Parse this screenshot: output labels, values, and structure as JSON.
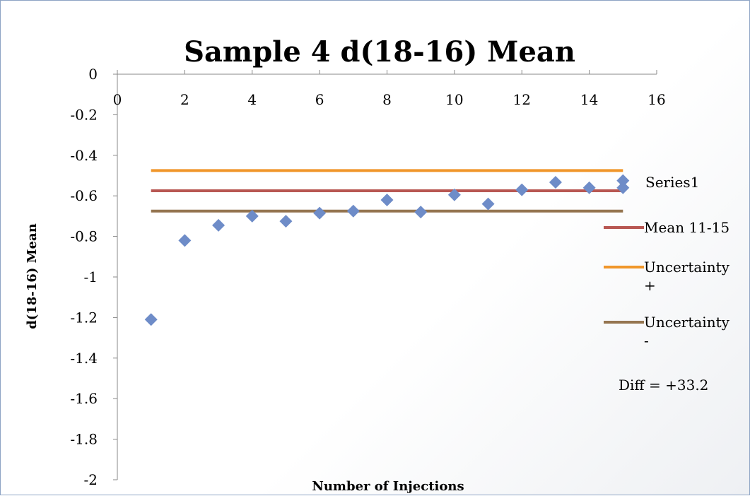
{
  "chart_data": {
    "type": "scatter",
    "title": "Sample 4 d(18-16) Mean",
    "xlabel": "Number of Injections",
    "ylabel": "d(18-16) Mean",
    "xlim": [
      0,
      16
    ],
    "ylim": [
      -2,
      0
    ],
    "x_ticks": [
      "0",
      "2",
      "4",
      "6",
      "8",
      "10",
      "12",
      "14",
      "16"
    ],
    "y_ticks": [
      "0",
      "-0.2",
      "-0.4",
      "-0.6",
      "-0.8",
      "-1",
      "-1.2",
      "-1.4",
      "-1.6",
      "-1.8",
      "-2"
    ],
    "grid": false,
    "legend_position": "right",
    "series": [
      {
        "name": "Series1",
        "kind": "scatter",
        "color": "#6e8cc8",
        "marker": "diamond",
        "points": [
          [
            1,
            -1.21
          ],
          [
            2,
            -0.82
          ],
          [
            3,
            -0.745
          ],
          [
            4,
            -0.7
          ],
          [
            5,
            -0.725
          ],
          [
            6,
            -0.685
          ],
          [
            7,
            -0.675
          ],
          [
            8,
            -0.62
          ],
          [
            9,
            -0.68
          ],
          [
            10,
            -0.595
          ],
          [
            11,
            -0.64
          ],
          [
            12,
            -0.57
          ],
          [
            13,
            -0.533
          ],
          [
            14,
            -0.56
          ],
          [
            15,
            -0.525
          ],
          [
            15,
            -0.56
          ]
        ]
      },
      {
        "name": "Mean 11-15",
        "kind": "line",
        "color": "#b85752",
        "x": [
          1,
          15
        ],
        "y": [
          -0.575,
          -0.575
        ]
      },
      {
        "name": "Uncertainty +",
        "kind": "line",
        "color": "#f0962a",
        "x": [
          1,
          15
        ],
        "y": [
          -0.475,
          -0.475
        ]
      },
      {
        "name": "Uncertainty -",
        "kind": "line",
        "color": "#957550",
        "x": [
          1,
          15
        ],
        "y": [
          -0.675,
          -0.675
        ]
      }
    ],
    "legend": [
      {
        "name": "Series1",
        "lines": [
          "Series1"
        ]
      },
      {
        "name": "Mean 11-15",
        "lines": [
          "Mean 11-15"
        ]
      },
      {
        "name": "Uncertainty +",
        "lines": [
          "Uncertainty",
          "+"
        ]
      },
      {
        "name": "Uncertainty -",
        "lines": [
          "Uncertainty",
          "-"
        ]
      }
    ],
    "annotation": "Diff = +33.2"
  }
}
